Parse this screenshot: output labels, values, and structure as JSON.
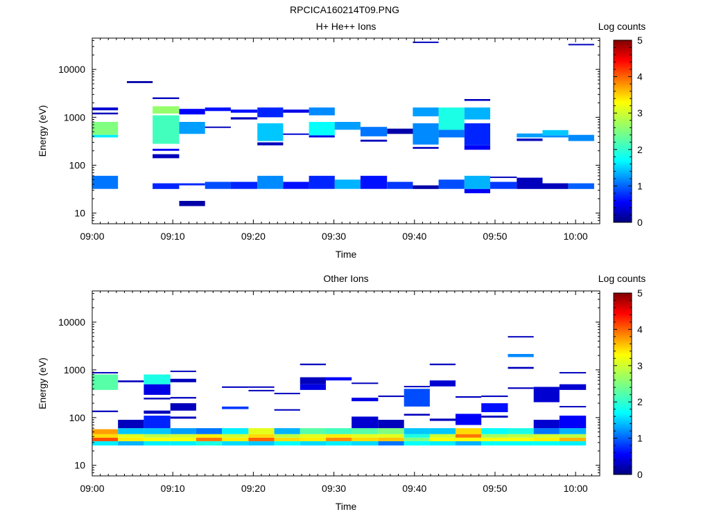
{
  "figure_title": "RPCICA160214T09.PNG",
  "chart_data": [
    {
      "type": "heatmap",
      "title": "H+ He++ Ions",
      "xlabel": "Time",
      "ylabel": "Energy (eV)",
      "x_ticks": [
        "09:00",
        "09:10",
        "09:20",
        "09:30",
        "09:40",
        "09:50",
        "10:00"
      ],
      "x_range_minutes": [
        0,
        63
      ],
      "y_scale": "log",
      "y_range": [
        6,
        45000
      ],
      "y_ticks": [
        "10",
        "100",
        "1000",
        "10000"
      ],
      "colorbar": {
        "label": "Log counts",
        "range": [
          0,
          5
        ],
        "ticks": [
          "0",
          "1",
          "2",
          "3",
          "4",
          "5"
        ]
      },
      "cells": [
        [
          0,
          3.2,
          32,
          60,
          1.2
        ],
        [
          0,
          3.2,
          380,
          430,
          1.8
        ],
        [
          0,
          3.2,
          430,
          800,
          2.5
        ],
        [
          0,
          3.2,
          1400,
          1600,
          0.4
        ],
        [
          0,
          3.2,
          1150,
          1250,
          0.3
        ],
        [
          4.3,
          7.5,
          5200,
          5700,
          0.2
        ],
        [
          7.5,
          10.8,
          32,
          42,
          0.8
        ],
        [
          7.5,
          10.8,
          140,
          170,
          0.3
        ],
        [
          7.5,
          10.8,
          200,
          220,
          0.6
        ],
        [
          7.5,
          10.8,
          280,
          1100,
          2.2
        ],
        [
          7.5,
          10.8,
          1200,
          1700,
          2.6
        ],
        [
          7.5,
          10.8,
          2400,
          2600,
          0.3
        ],
        [
          10.8,
          14,
          14,
          18,
          0.2
        ],
        [
          10.8,
          14,
          38,
          42,
          0.8
        ],
        [
          10.8,
          14,
          450,
          800,
          1.4
        ],
        [
          10.8,
          14,
          1150,
          1500,
          0.6
        ],
        [
          14,
          17.2,
          32,
          45,
          1.0
        ],
        [
          14,
          17.2,
          600,
          640,
          0.3
        ],
        [
          14,
          17.2,
          1350,
          1600,
          0.7
        ],
        [
          17.2,
          20.5,
          32,
          45,
          0.8
        ],
        [
          17.2,
          20.5,
          900,
          1000,
          0.3
        ],
        [
          17.2,
          20.5,
          1250,
          1450,
          0.7
        ],
        [
          20.5,
          23.7,
          32,
          60,
          1.3
        ],
        [
          20.5,
          23.7,
          260,
          300,
          0.3
        ],
        [
          20.5,
          23.7,
          320,
          750,
          1.6
        ],
        [
          20.5,
          23.7,
          1000,
          1600,
          0.8
        ],
        [
          23.7,
          26.9,
          32,
          45,
          0.7
        ],
        [
          23.7,
          26.9,
          430,
          460,
          0.4
        ],
        [
          23.7,
          26.9,
          1250,
          1450,
          0.5
        ],
        [
          26.9,
          30.1,
          32,
          60,
          0.8
        ],
        [
          26.9,
          30.1,
          380,
          420,
          0.5
        ],
        [
          26.9,
          30.1,
          420,
          800,
          1.9
        ],
        [
          26.9,
          30.1,
          1100,
          1600,
          1.3
        ],
        [
          30.1,
          33.3,
          32,
          50,
          1.5
        ],
        [
          30.1,
          33.3,
          550,
          800,
          1.4
        ],
        [
          33.3,
          36.6,
          32,
          60,
          0.7
        ],
        [
          33.3,
          36.6,
          310,
          340,
          0.3
        ],
        [
          33.3,
          36.6,
          400,
          630,
          1.2
        ],
        [
          36.6,
          39.8,
          32,
          45,
          0.9
        ],
        [
          36.6,
          39.8,
          450,
          580,
          0.2
        ],
        [
          39.8,
          43,
          32,
          38,
          0.2
        ],
        [
          39.8,
          43,
          220,
          240,
          0.3
        ],
        [
          39.8,
          43,
          270,
          750,
          1.3
        ],
        [
          39.8,
          43,
          1050,
          1600,
          1.4
        ],
        [
          39.8,
          43,
          36000,
          38000,
          0.3
        ],
        [
          43,
          46.2,
          32,
          50,
          1.0
        ],
        [
          43,
          46.2,
          380,
          550,
          1.2
        ],
        [
          43,
          46.2,
          550,
          1600,
          2.0
        ],
        [
          46.2,
          49.4,
          26,
          32,
          0.6
        ],
        [
          46.2,
          49.4,
          32,
          60,
          1.5
        ],
        [
          46.2,
          49.4,
          210,
          260,
          0.6
        ],
        [
          46.2,
          49.4,
          260,
          750,
          0.8
        ],
        [
          46.2,
          49.4,
          900,
          1600,
          1.5
        ],
        [
          46.2,
          49.4,
          2200,
          2400,
          0.3
        ],
        [
          49.4,
          52.7,
          32,
          45,
          0.9
        ],
        [
          49.4,
          52.7,
          55,
          58,
          0.3
        ],
        [
          52.7,
          55.9,
          32,
          55,
          0.3
        ],
        [
          52.7,
          55.9,
          320,
          360,
          0.3
        ],
        [
          52.7,
          55.9,
          380,
          460,
          1.4
        ],
        [
          55.9,
          59.1,
          32,
          42,
          0.3
        ],
        [
          55.9,
          59.1,
          380,
          420,
          1.3
        ],
        [
          55.9,
          59.1,
          420,
          540,
          1.6
        ],
        [
          59.1,
          62.3,
          32,
          42,
          1.1
        ],
        [
          59.1,
          62.3,
          320,
          430,
          1.3
        ],
        [
          59.1,
          62.3,
          32000,
          34000,
          0.3
        ]
      ]
    },
    {
      "type": "heatmap",
      "title": "Other Ions",
      "xlabel": "Time",
      "ylabel": "Energy (eV)",
      "x_ticks": [
        "09:00",
        "09:10",
        "09:20",
        "09:30",
        "09:40",
        "09:50",
        "10:00"
      ],
      "x_range_minutes": [
        0,
        63
      ],
      "y_scale": "log",
      "y_range": [
        6,
        45000
      ],
      "y_ticks": [
        "10",
        "100",
        "1000",
        "10000"
      ],
      "colorbar": {
        "label": "Log counts",
        "range": [
          0,
          5
        ],
        "ticks": [
          "0",
          "1",
          "2",
          "3",
          "4",
          "5"
        ]
      },
      "cells": [
        [
          0,
          3.2,
          26,
          32,
          1.8
        ],
        [
          0,
          3.2,
          32,
          38,
          4.0
        ],
        [
          0,
          3.2,
          38,
          45,
          3.3
        ],
        [
          0,
          3.2,
          45,
          57,
          3.6
        ],
        [
          0,
          3.2,
          130,
          140,
          0.3
        ],
        [
          0,
          3.2,
          380,
          800,
          2.3
        ],
        [
          0,
          3.2,
          850,
          900,
          0.3
        ],
        [
          3.2,
          6.4,
          26,
          32,
          1.5
        ],
        [
          3.2,
          6.4,
          32,
          38,
          3.2
        ],
        [
          3.2,
          6.4,
          38,
          45,
          3.0
        ],
        [
          3.2,
          6.4,
          45,
          60,
          1.6
        ],
        [
          3.2,
          6.4,
          60,
          90,
          0.3
        ],
        [
          3.2,
          6.4,
          550,
          600,
          0.3
        ],
        [
          6.4,
          9.7,
          26,
          32,
          1.8
        ],
        [
          6.4,
          9.7,
          32,
          38,
          3.1
        ],
        [
          6.4,
          9.7,
          38,
          45,
          2.8
        ],
        [
          6.4,
          9.7,
          45,
          60,
          1.6
        ],
        [
          6.4,
          9.7,
          60,
          110,
          0.8
        ],
        [
          6.4,
          9.7,
          120,
          140,
          0.3
        ],
        [
          6.4,
          9.7,
          240,
          260,
          0.3
        ],
        [
          6.4,
          9.7,
          300,
          500,
          0.5
        ],
        [
          6.4,
          9.7,
          500,
          800,
          2.0
        ],
        [
          9.7,
          12.9,
          26,
          32,
          1.8
        ],
        [
          9.7,
          12.9,
          32,
          38,
          3.1
        ],
        [
          9.7,
          12.9,
          38,
          45,
          2.9
        ],
        [
          9.7,
          12.9,
          45,
          60,
          1.4
        ],
        [
          9.7,
          12.9,
          95,
          105,
          0.3
        ],
        [
          9.7,
          12.9,
          140,
          200,
          0.3
        ],
        [
          9.7,
          12.9,
          250,
          270,
          0.3
        ],
        [
          9.7,
          12.9,
          550,
          650,
          0.3
        ],
        [
          9.7,
          12.9,
          900,
          960,
          0.3
        ],
        [
          12.9,
          16.1,
          26,
          32,
          2.0
        ],
        [
          12.9,
          16.1,
          32,
          38,
          3.8
        ],
        [
          12.9,
          16.1,
          38,
          45,
          3.2
        ],
        [
          12.9,
          16.1,
          45,
          60,
          1.2
        ],
        [
          16.1,
          19.4,
          26,
          32,
          1.7
        ],
        [
          16.1,
          19.4,
          32,
          38,
          3.2
        ],
        [
          16.1,
          19.4,
          38,
          45,
          2.9
        ],
        [
          16.1,
          19.4,
          45,
          60,
          1.8
        ],
        [
          16.1,
          19.4,
          150,
          170,
          0.9
        ],
        [
          16.1,
          19.4,
          420,
          450,
          0.3
        ],
        [
          19.4,
          22.6,
          26,
          32,
          1.6
        ],
        [
          19.4,
          22.6,
          32,
          38,
          3.9
        ],
        [
          19.4,
          22.6,
          38,
          45,
          3.3
        ],
        [
          19.4,
          22.6,
          45,
          60,
          3.0
        ],
        [
          19.4,
          22.6,
          360,
          380,
          0.3
        ],
        [
          19.4,
          22.6,
          430,
          450,
          0.3
        ],
        [
          22.6,
          25.8,
          26,
          32,
          1.9
        ],
        [
          22.6,
          25.8,
          32,
          38,
          3.3
        ],
        [
          22.6,
          25.8,
          38,
          45,
          2.8
        ],
        [
          22.6,
          25.8,
          45,
          60,
          1.5
        ],
        [
          22.6,
          25.8,
          140,
          150,
          0.3
        ],
        [
          22.6,
          25.8,
          310,
          330,
          0.3
        ],
        [
          25.8,
          29,
          26,
          32,
          1.7
        ],
        [
          25.8,
          29,
          32,
          38,
          3.2
        ],
        [
          25.8,
          29,
          38,
          45,
          3.0
        ],
        [
          25.8,
          29,
          45,
          60,
          2.3
        ],
        [
          25.8,
          29,
          380,
          500,
          0.5
        ],
        [
          25.8,
          29,
          500,
          700,
          0.3
        ],
        [
          25.8,
          29,
          1250,
          1350,
          0.3
        ],
        [
          29,
          32.2,
          26,
          32,
          1.8
        ],
        [
          29,
          32.2,
          32,
          38,
          3.7
        ],
        [
          29,
          32.2,
          38,
          45,
          3.2
        ],
        [
          29,
          32.2,
          45,
          60,
          2.2
        ],
        [
          29,
          32.2,
          600,
          700,
          0.6
        ],
        [
          32.2,
          35.5,
          26,
          32,
          1.7
        ],
        [
          32.2,
          35.5,
          32,
          38,
          3.3
        ],
        [
          32.2,
          35.5,
          38,
          45,
          3.0
        ],
        [
          32.2,
          35.5,
          45,
          60,
          2.3
        ],
        [
          32.2,
          35.5,
          60,
          105,
          0.4
        ],
        [
          32.2,
          35.5,
          220,
          260,
          0.5
        ],
        [
          32.2,
          35.5,
          510,
          540,
          0.3
        ],
        [
          35.5,
          38.7,
          26,
          32,
          1.2
        ],
        [
          35.5,
          38.7,
          32,
          38,
          3.4
        ],
        [
          35.5,
          38.7,
          38,
          45,
          3.0
        ],
        [
          35.5,
          38.7,
          45,
          60,
          2.5
        ],
        [
          35.5,
          38.7,
          60,
          90,
          0.3
        ],
        [
          35.5,
          38.7,
          270,
          290,
          0.3
        ],
        [
          38.7,
          41.9,
          26,
          32,
          1.9
        ],
        [
          38.7,
          41.9,
          32,
          38,
          2.5
        ],
        [
          38.7,
          41.9,
          38,
          45,
          2.0
        ],
        [
          38.7,
          41.9,
          45,
          60,
          1.6
        ],
        [
          38.7,
          41.9,
          110,
          120,
          0.3
        ],
        [
          38.7,
          41.9,
          170,
          400,
          1.0
        ],
        [
          38.7,
          41.9,
          430,
          460,
          0.3
        ],
        [
          41.9,
          45.1,
          26,
          32,
          1.8
        ],
        [
          41.9,
          45.1,
          32,
          38,
          3.1
        ],
        [
          41.9,
          45.1,
          38,
          45,
          2.9
        ],
        [
          41.9,
          45.1,
          45,
          60,
          1.6
        ],
        [
          41.9,
          45.1,
          85,
          95,
          0.3
        ],
        [
          41.9,
          45.1,
          450,
          600,
          0.4
        ],
        [
          41.9,
          45.1,
          1250,
          1350,
          0.3
        ],
        [
          45.1,
          48.3,
          26,
          32,
          1.5
        ],
        [
          45.1,
          48.3,
          32,
          38,
          3.1
        ],
        [
          45.1,
          48.3,
          38,
          45,
          3.8
        ],
        [
          45.1,
          48.3,
          45,
          60,
          3.3
        ],
        [
          45.1,
          48.3,
          70,
          120,
          0.6
        ],
        [
          45.1,
          48.3,
          260,
          280,
          0.3
        ],
        [
          48.3,
          51.6,
          26,
          32,
          1.9
        ],
        [
          48.3,
          51.6,
          32,
          38,
          3.1
        ],
        [
          48.3,
          51.6,
          38,
          45,
          2.7
        ],
        [
          48.3,
          51.6,
          45,
          60,
          1.9
        ],
        [
          48.3,
          51.6,
          100,
          110,
          0.3
        ],
        [
          48.3,
          51.6,
          130,
          200,
          0.7
        ],
        [
          48.3,
          51.6,
          270,
          290,
          0.3
        ],
        [
          51.6,
          54.8,
          26,
          32,
          1.9
        ],
        [
          51.6,
          54.8,
          32,
          38,
          3.1
        ],
        [
          51.6,
          54.8,
          38,
          45,
          2.8
        ],
        [
          51.6,
          54.8,
          45,
          60,
          2.0
        ],
        [
          51.6,
          54.8,
          400,
          430,
          0.3
        ],
        [
          51.6,
          54.8,
          1050,
          1150,
          0.3
        ],
        [
          51.6,
          54.8,
          1850,
          2150,
          1.3
        ],
        [
          51.6,
          54.8,
          4800,
          5100,
          0.3
        ],
        [
          54.8,
          58,
          26,
          32,
          1.9
        ],
        [
          54.8,
          58,
          32,
          38,
          3.2
        ],
        [
          54.8,
          58,
          38,
          45,
          2.9
        ],
        [
          54.8,
          58,
          45,
          60,
          1.2
        ],
        [
          54.8,
          58,
          60,
          90,
          0.4
        ],
        [
          54.8,
          58,
          210,
          440,
          0.4
        ],
        [
          58,
          61.3,
          26,
          32,
          1.8
        ],
        [
          58,
          61.3,
          32,
          38,
          3.5
        ],
        [
          58,
          61.3,
          38,
          45,
          2.8
        ],
        [
          58,
          61.3,
          45,
          60,
          1.5
        ],
        [
          58,
          61.3,
          60,
          110,
          0.6
        ],
        [
          58,
          61.3,
          165,
          175,
          0.3
        ],
        [
          58,
          61.3,
          380,
          500,
          0.4
        ],
        [
          58,
          61.3,
          850,
          900,
          0.3
        ]
      ]
    }
  ]
}
